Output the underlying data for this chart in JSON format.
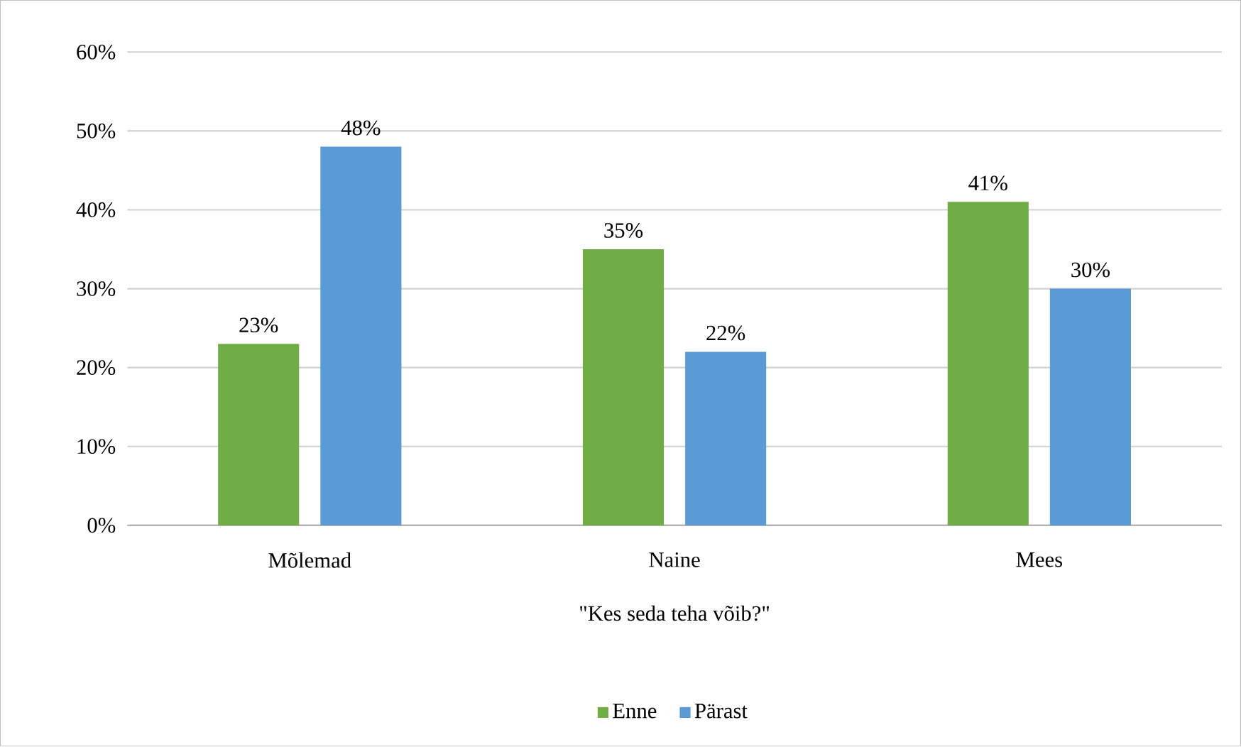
{
  "chart_data": {
    "type": "bar",
    "xlabel": "\"Kes seda teha võib?\"",
    "categories": [
      "Mõlemad",
      "Naine",
      "Mees"
    ],
    "series": [
      {
        "name": "Enne",
        "color": "#70ad47",
        "values": [
          23,
          35,
          41
        ],
        "value_labels": [
          "23%",
          "35%",
          "41%"
        ]
      },
      {
        "name": "Pärast",
        "color": "#5b9bd5",
        "values": [
          48,
          22,
          30
        ],
        "value_labels": [
          "48%",
          "22%",
          "30%"
        ]
      }
    ],
    "ylim": [
      0,
      60
    ],
    "yticks": [
      {
        "value": 0,
        "label": "0%"
      },
      {
        "value": 10,
        "label": "10%"
      },
      {
        "value": 20,
        "label": "20%"
      },
      {
        "value": 30,
        "label": "30%"
      },
      {
        "value": 40,
        "label": "40%"
      },
      {
        "value": 50,
        "label": "50%"
      },
      {
        "value": 60,
        "label": "60%"
      }
    ],
    "grid": "y",
    "legend": "bottom"
  }
}
